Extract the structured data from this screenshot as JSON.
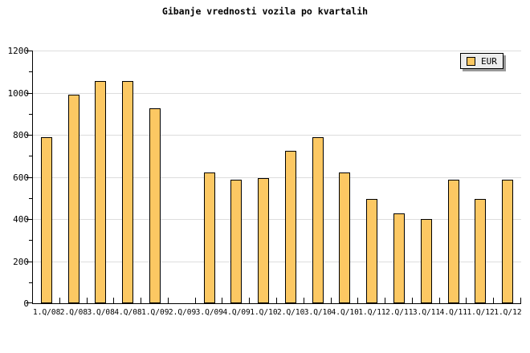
{
  "title": "Gibanje vrednosti vozila po kvartalih",
  "legend": {
    "label": "EUR"
  },
  "colors": {
    "bar_fill": "#FCC863",
    "bar_border": "#000000",
    "gridline": "#DDDDDD",
    "axis": "#000000",
    "legend_bg": "#EDEDED",
    "legend_shadow": "#999999",
    "background": "#FFFFFF"
  },
  "chart_data": {
    "type": "bar",
    "title": "Gibanje vrednosti vozila po kvartalih",
    "categories": [
      "1.Q/08",
      "2.Q/08",
      "3.Q/08",
      "4.Q/08",
      "1.Q/09",
      "2.Q/09",
      "3.Q/09",
      "4.Q/09",
      "1.Q/10",
      "2.Q/10",
      "3.Q/10",
      "4.Q/10",
      "1.Q/11",
      "2.Q/11",
      "3.Q/11",
      "4.Q/11",
      "1.Q/12",
      "1.Q/12"
    ],
    "series": [
      {
        "name": "EUR",
        "values": [
          790,
          990,
          1055,
          1055,
          925,
          0,
          620,
          585,
          595,
          725,
          790,
          620,
          495,
          425,
          400,
          585,
          495,
          585
        ]
      }
    ],
    "xlabel": "",
    "ylabel": "",
    "ylim": [
      0,
      1200
    ],
    "ytick_step": 200,
    "yminor_step": 100,
    "yticks": [
      0,
      200,
      400,
      600,
      800,
      1000,
      1200
    ],
    "grid": true,
    "legend_position": "top-right",
    "note_missing_bar_category": "2.Q/09"
  }
}
